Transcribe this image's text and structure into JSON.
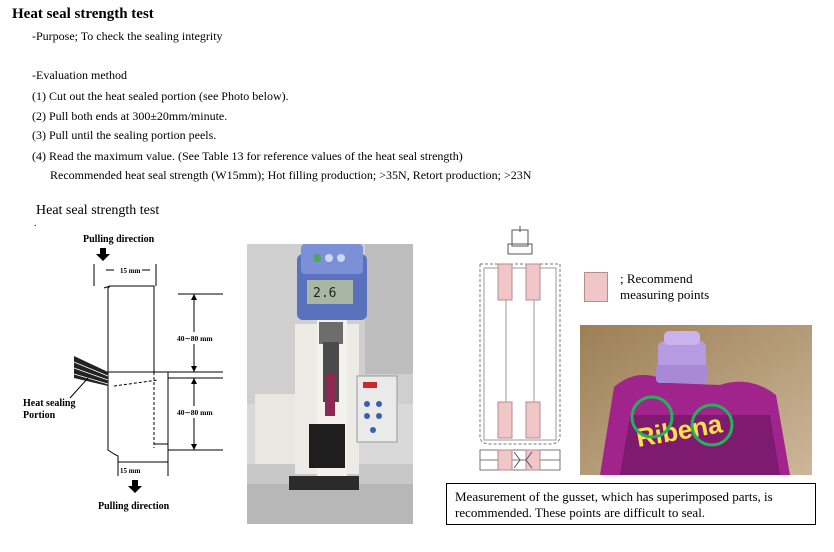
{
  "title": "Heat seal strength test",
  "purpose": "-Purpose; To check the sealing integrity",
  "eval_heading": "-Evaluation method",
  "steps": [
    "(1) Cut out the heat sealed portion (see Photo below).",
    "(2) Pull both ends at 300±20mm/minute.",
    "(3) Pull until the sealing portion peels.",
    "(4) Read the maximum value. (See Table 13 for reference values of the heat seal strength)"
  ],
  "recommended": "Recommended heat seal strength (W15mm);  Hot filling production; >35N,  Retort production; >23N",
  "figure_subtitle": "Heat seal strength test",
  "figure_dot": ".",
  "diagram": {
    "top_label": "Pulling direction",
    "bottom_label": "Pulling direction",
    "width_top": "15 mm",
    "width_bottom": "15 mm",
    "dim_upper": "40∼80 mm",
    "dim_lower": "40∼80 mm",
    "heat_label_1": "Heat sealing",
    "heat_label_2": "Portion"
  },
  "gauge_reading": "2.6",
  "legend": {
    "line1": "; Recommend",
    "line2": "measuring points",
    "color": "#f1c6c9"
  },
  "product_text": "Ribena",
  "note": "Measurement of the gusset, which has superimposed parts, is recommended. These points are difficult to seal."
}
